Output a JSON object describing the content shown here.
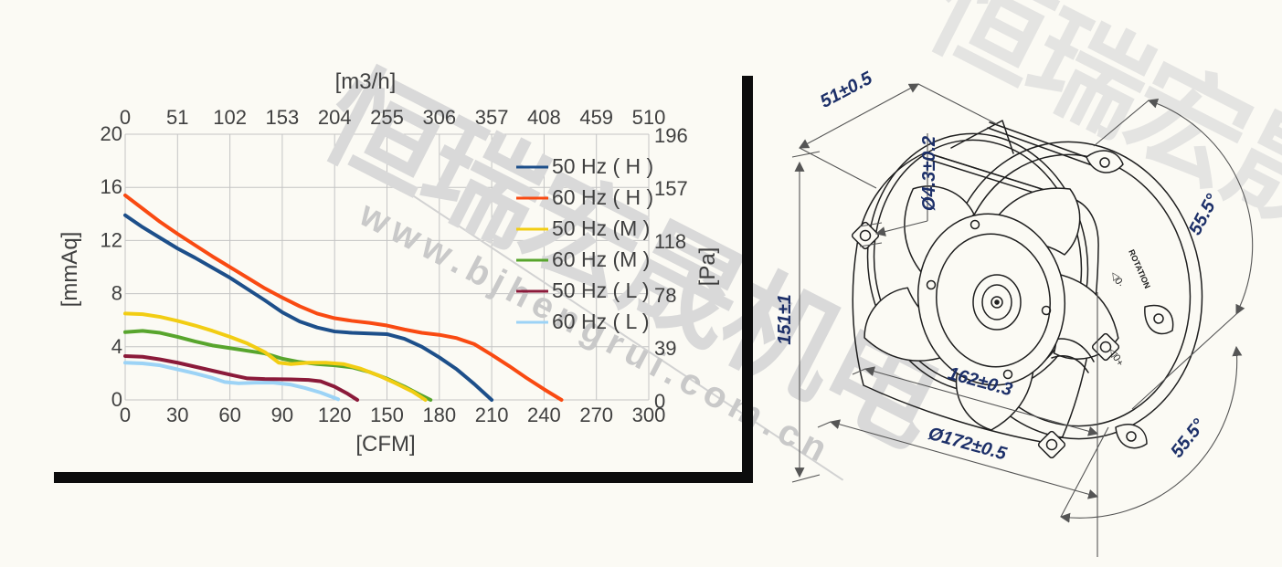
{
  "watermark": {
    "cn_text": "恒瑞宏晟机电",
    "url_text": "www.bjhengrui.com.cn"
  },
  "chart_data": {
    "type": "line",
    "title": "",
    "x_top": {
      "label": "[m3/h]",
      "ticks": [
        0,
        51,
        102,
        153,
        204,
        255,
        306,
        357,
        408,
        459,
        510
      ],
      "range": [
        0,
        510
      ]
    },
    "x_bottom": {
      "label": "[CFM]",
      "ticks": [
        0,
        30,
        60,
        90,
        120,
        150,
        180,
        210,
        240,
        270,
        300
      ],
      "range": [
        0,
        300
      ]
    },
    "y_left": {
      "label": "[mmAq]",
      "ticks": [
        0,
        4,
        8,
        12,
        16,
        20
      ],
      "range": [
        0,
        20
      ]
    },
    "y_right": {
      "label": "[Pa]",
      "ticks": [
        0,
        39,
        78,
        118,
        157,
        196
      ],
      "range": [
        0,
        196
      ]
    },
    "grid": true,
    "legend_position": "inside-right",
    "grid_color": "#c4c4c4",
    "tick_color": "#404040",
    "series": [
      {
        "name": "50 Hz ( H )",
        "color": "#1d4f8a",
        "points": [
          [
            0,
            13.9
          ],
          [
            10,
            13.0
          ],
          [
            20,
            12.2
          ],
          [
            30,
            11.4
          ],
          [
            40,
            10.7
          ],
          [
            50,
            9.95
          ],
          [
            60,
            9.2
          ],
          [
            70,
            8.35
          ],
          [
            80,
            7.5
          ],
          [
            90,
            6.6
          ],
          [
            100,
            5.9
          ],
          [
            110,
            5.45
          ],
          [
            120,
            5.15
          ],
          [
            130,
            5.05
          ],
          [
            140,
            5.0
          ],
          [
            150,
            4.95
          ],
          [
            160,
            4.6
          ],
          [
            170,
            4.0
          ],
          [
            180,
            3.2
          ],
          [
            190,
            2.3
          ],
          [
            200,
            1.2
          ],
          [
            210,
            0
          ]
        ]
      },
      {
        "name": "60 Hz ( H )",
        "color": "#f94a12",
        "points": [
          [
            0,
            15.4
          ],
          [
            10,
            14.4
          ],
          [
            20,
            13.4
          ],
          [
            30,
            12.5
          ],
          [
            40,
            11.65
          ],
          [
            50,
            10.8
          ],
          [
            60,
            10.0
          ],
          [
            70,
            9.2
          ],
          [
            80,
            8.4
          ],
          [
            90,
            7.7
          ],
          [
            100,
            7.05
          ],
          [
            110,
            6.5
          ],
          [
            120,
            6.15
          ],
          [
            130,
            5.95
          ],
          [
            140,
            5.8
          ],
          [
            150,
            5.6
          ],
          [
            160,
            5.3
          ],
          [
            170,
            5.05
          ],
          [
            180,
            4.9
          ],
          [
            190,
            4.65
          ],
          [
            200,
            4.2
          ],
          [
            210,
            3.4
          ],
          [
            220,
            2.55
          ],
          [
            230,
            1.65
          ],
          [
            240,
            0.8
          ],
          [
            250,
            0
          ]
        ]
      },
      {
        "name": "50 Hz (M )",
        "color": "#f2cd13",
        "points": [
          [
            0,
            6.5
          ],
          [
            10,
            6.45
          ],
          [
            20,
            6.25
          ],
          [
            30,
            5.95
          ],
          [
            40,
            5.6
          ],
          [
            50,
            5.2
          ],
          [
            60,
            4.75
          ],
          [
            70,
            4.25
          ],
          [
            80,
            3.6
          ],
          [
            88,
            2.8
          ],
          [
            95,
            2.7
          ],
          [
            105,
            2.8
          ],
          [
            115,
            2.8
          ],
          [
            125,
            2.7
          ],
          [
            135,
            2.35
          ],
          [
            145,
            1.85
          ],
          [
            155,
            1.25
          ],
          [
            165,
            0.6
          ],
          [
            172,
            0
          ]
        ]
      },
      {
        "name": "60 Hz (M )",
        "color": "#58a52d",
        "points": [
          [
            0,
            5.1
          ],
          [
            10,
            5.2
          ],
          [
            20,
            5.05
          ],
          [
            30,
            4.75
          ],
          [
            40,
            4.4
          ],
          [
            50,
            4.1
          ],
          [
            60,
            3.9
          ],
          [
            70,
            3.7
          ],
          [
            80,
            3.5
          ],
          [
            90,
            3.1
          ],
          [
            100,
            2.85
          ],
          [
            110,
            2.7
          ],
          [
            120,
            2.6
          ],
          [
            130,
            2.45
          ],
          [
            140,
            2.1
          ],
          [
            150,
            1.6
          ],
          [
            160,
            1.0
          ],
          [
            168,
            0.45
          ],
          [
            175,
            0
          ]
        ]
      },
      {
        "name": "50 Hz ( L )",
        "color": "#8b1a3a",
        "points": [
          [
            0,
            3.3
          ],
          [
            10,
            3.25
          ],
          [
            20,
            3.05
          ],
          [
            30,
            2.8
          ],
          [
            40,
            2.5
          ],
          [
            50,
            2.2
          ],
          [
            60,
            1.9
          ],
          [
            70,
            1.62
          ],
          [
            80,
            1.57
          ],
          [
            95,
            1.55
          ],
          [
            105,
            1.5
          ],
          [
            112,
            1.4
          ],
          [
            120,
            1.0
          ],
          [
            127,
            0.5
          ],
          [
            133,
            0
          ]
        ]
      },
      {
        "name": "60 Hz ( L )",
        "color": "#9cd3f6",
        "points": [
          [
            0,
            2.8
          ],
          [
            10,
            2.75
          ],
          [
            20,
            2.6
          ],
          [
            30,
            2.3
          ],
          [
            40,
            2.0
          ],
          [
            50,
            1.65
          ],
          [
            57,
            1.35
          ],
          [
            65,
            1.25
          ],
          [
            75,
            1.3
          ],
          [
            85,
            1.3
          ],
          [
            95,
            1.15
          ],
          [
            103,
            0.9
          ],
          [
            112,
            0.55
          ],
          [
            122,
            0.05
          ]
        ]
      }
    ]
  },
  "fan_drawing": {
    "dims": {
      "depth": "51±0.5",
      "height": "151±1",
      "hole_dia": "Ø4.3±0.2",
      "mount_pitch": "162±0.3",
      "outer_dia": "Ø172±0.5",
      "angle_top": "55.5°",
      "angle_bottom": "55.5°"
    },
    "rim_text": "ROTATION",
    "marks": {
      "upper": "◁0·",
      "lower": "◁0+"
    }
  }
}
